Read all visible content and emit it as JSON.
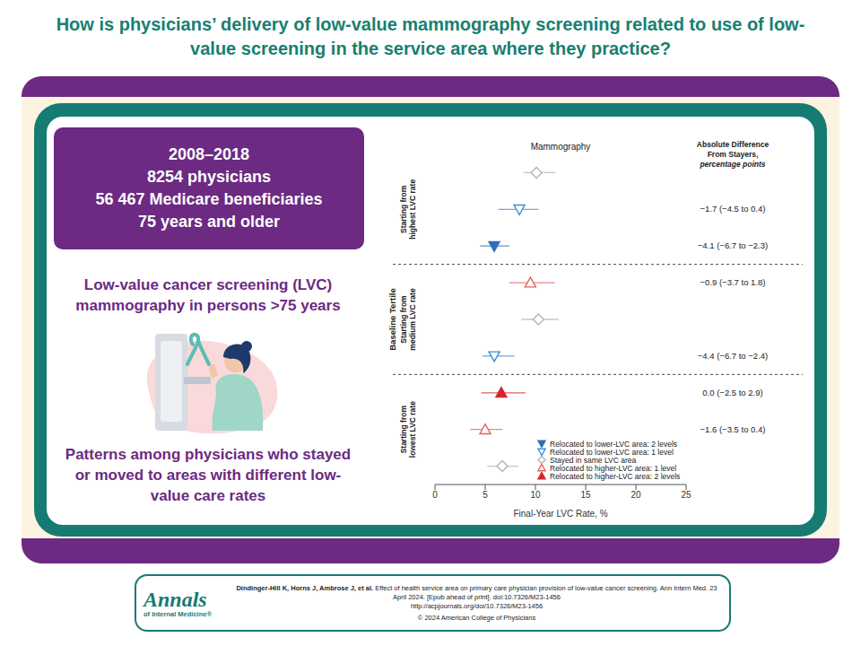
{
  "title": "How is physicians’ delivery of low-value mammography screening related to use of low-value screening in the service area where they practice?",
  "study_box": [
    "2008–2018",
    "8254 physicians",
    "56 467 Medicare beneficiaries",
    "75 years and older"
  ],
  "topic": "Low-value cancer screening (LVC) mammography in persons >75 years",
  "patterns": "Patterns among physicians who stayed or moved to areas with different low-value care rates",
  "citation": {
    "journal": "Annals",
    "journal_subtitle": "of Internal Medicine®",
    "authors": "Dindinger-Hill K, Horns J, Ambrose J, et al.",
    "reference": "Effect of health service area on primary care physician provision of low-value cancer screening. Ann Intern Med. 23 April 2024. [Epub ahead of print]. doi:10.7326/M23-1456",
    "url": "http://acpjournals.org/doi/10.7326/M23-1456",
    "copyright": "© 2024 American College of Physicians"
  },
  "chart_data": {
    "type": "forest",
    "title": "Mammography",
    "xlabel": "Final-Year LVC Rate, %",
    "ylabel": "Baseline Tertile",
    "xlim": [
      0,
      25
    ],
    "xticks": [
      0,
      5,
      10,
      15,
      20,
      25
    ],
    "tick_labels": "x",
    "grid": false,
    "legend": "lower right",
    "difference_title": [
      "Absolute Difference",
      "From Stayers,"
    ],
    "difference_unit": "percentage points",
    "series": [
      {
        "name": "Relocated to lower-LVC area: 2 levels",
        "color": "#2f6fba",
        "marker": "filled-triangle-down"
      },
      {
        "name": "Relocated to lower-LVC area: 1 level",
        "color": "#3f8bd6",
        "marker": "open-triangle-down"
      },
      {
        "name": "Stayed in same LVC area",
        "color": "#b3b3b3",
        "marker": "open-diamond"
      },
      {
        "name": "Relocated to higher-LVC area: 1 level",
        "color": "#e3615b",
        "marker": "open-triangle-up"
      },
      {
        "name": "Relocated to higher-LVC area: 2 levels",
        "color": "#d7262b",
        "marker": "filled-triangle-up"
      }
    ],
    "groups": [
      {
        "label": "Starting from highest LVC rate",
        "rows": [
          {
            "series": "Stayed in same LVC area",
            "value": 10.1,
            "ci": [
              8.8,
              12.0
            ],
            "difference": null
          },
          {
            "series": "Relocated to lower-LVC area: 1 level",
            "value": 8.4,
            "ci": [
              6.3,
              10.3
            ],
            "difference": "−1.7 (−4.5 to 0.4)"
          },
          {
            "series": "Relocated to lower-LVC area: 2 levels",
            "value": 5.9,
            "ci": [
              4.5,
              7.4
            ],
            "difference": "−4.1 (−6.7 to −2.3)"
          }
        ]
      },
      {
        "label": "Starting from medium LVC rate",
        "rows": [
          {
            "series": "Relocated to higher-LVC area: 1 level",
            "value": 9.5,
            "ci": [
              7.4,
              11.9
            ],
            "difference": "−0.9 (−3.7 to 1.8)"
          },
          {
            "series": "Stayed in same LVC area",
            "value": 10.3,
            "ci": [
              8.6,
              12.3
            ],
            "difference": null
          },
          {
            "series": "Relocated to lower-LVC area: 1 level",
            "value": 5.9,
            "ci": [
              4.7,
              7.9
            ],
            "difference": "−4.4 (−6.7 to −2.4)"
          }
        ]
      },
      {
        "label": "Starting from lowest LVC rate",
        "rows": [
          {
            "series": "Relocated to higher-LVC area: 2 levels",
            "value": 6.6,
            "ci": [
              4.6,
              9.0
            ],
            "difference": "0.0 (−2.5 to 2.9)"
          },
          {
            "series": "Relocated to higher-LVC area: 1 level",
            "value": 5.0,
            "ci": [
              3.5,
              6.7
            ],
            "difference": "−1.6 (−3.5 to 0.4)"
          },
          {
            "series": "Stayed in same LVC area",
            "value": 6.7,
            "ci": [
              5.2,
              8.3
            ],
            "difference": null
          }
        ]
      }
    ]
  }
}
